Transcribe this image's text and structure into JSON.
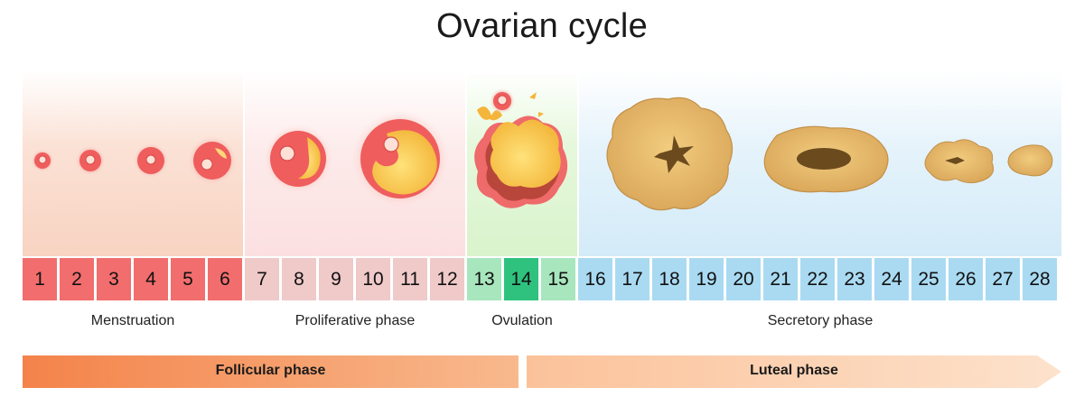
{
  "title": "Ovarian cycle",
  "days": [
    {
      "n": "1",
      "phase": "menstruation"
    },
    {
      "n": "2",
      "phase": "menstruation"
    },
    {
      "n": "3",
      "phase": "menstruation"
    },
    {
      "n": "4",
      "phase": "menstruation"
    },
    {
      "n": "5",
      "phase": "menstruation"
    },
    {
      "n": "6",
      "phase": "menstruation"
    },
    {
      "n": "7",
      "phase": "proliferative"
    },
    {
      "n": "8",
      "phase": "proliferative"
    },
    {
      "n": "9",
      "phase": "proliferative"
    },
    {
      "n": "10",
      "phase": "proliferative"
    },
    {
      "n": "11",
      "phase": "proliferative"
    },
    {
      "n": "12",
      "phase": "proliferative"
    },
    {
      "n": "13",
      "phase": "ovulation"
    },
    {
      "n": "14",
      "phase": "ovulation-peak"
    },
    {
      "n": "15",
      "phase": "ovulation"
    },
    {
      "n": "16",
      "phase": "secretory"
    },
    {
      "n": "17",
      "phase": "secretory"
    },
    {
      "n": "18",
      "phase": "secretory"
    },
    {
      "n": "19",
      "phase": "secretory"
    },
    {
      "n": "20",
      "phase": "secretory"
    },
    {
      "n": "21",
      "phase": "secretory"
    },
    {
      "n": "22",
      "phase": "secretory"
    },
    {
      "n": "23",
      "phase": "secretory"
    },
    {
      "n": "24",
      "phase": "secretory"
    },
    {
      "n": "25",
      "phase": "secretory"
    },
    {
      "n": "26",
      "phase": "secretory"
    },
    {
      "n": "27",
      "phase": "secretory"
    },
    {
      "n": "28",
      "phase": "secretory"
    }
  ],
  "colors": {
    "menstruation": "#f26d6d",
    "proliferative": "#f0c9c9",
    "ovulation": "#a8e6bd",
    "ovulation-peak": "#2ec27e",
    "secretory": "#a9daf2",
    "follicular_arrow": "#f4874f",
    "luteal_arrow": "#fbcba5"
  },
  "phases": {
    "menstruation": "Menstruation",
    "proliferative": "Proliferative phase",
    "ovulation": "Ovulation",
    "secretory": "Secretory phase"
  },
  "arrows": {
    "follicular": "Follicular phase",
    "luteal": "Luteal phase"
  }
}
